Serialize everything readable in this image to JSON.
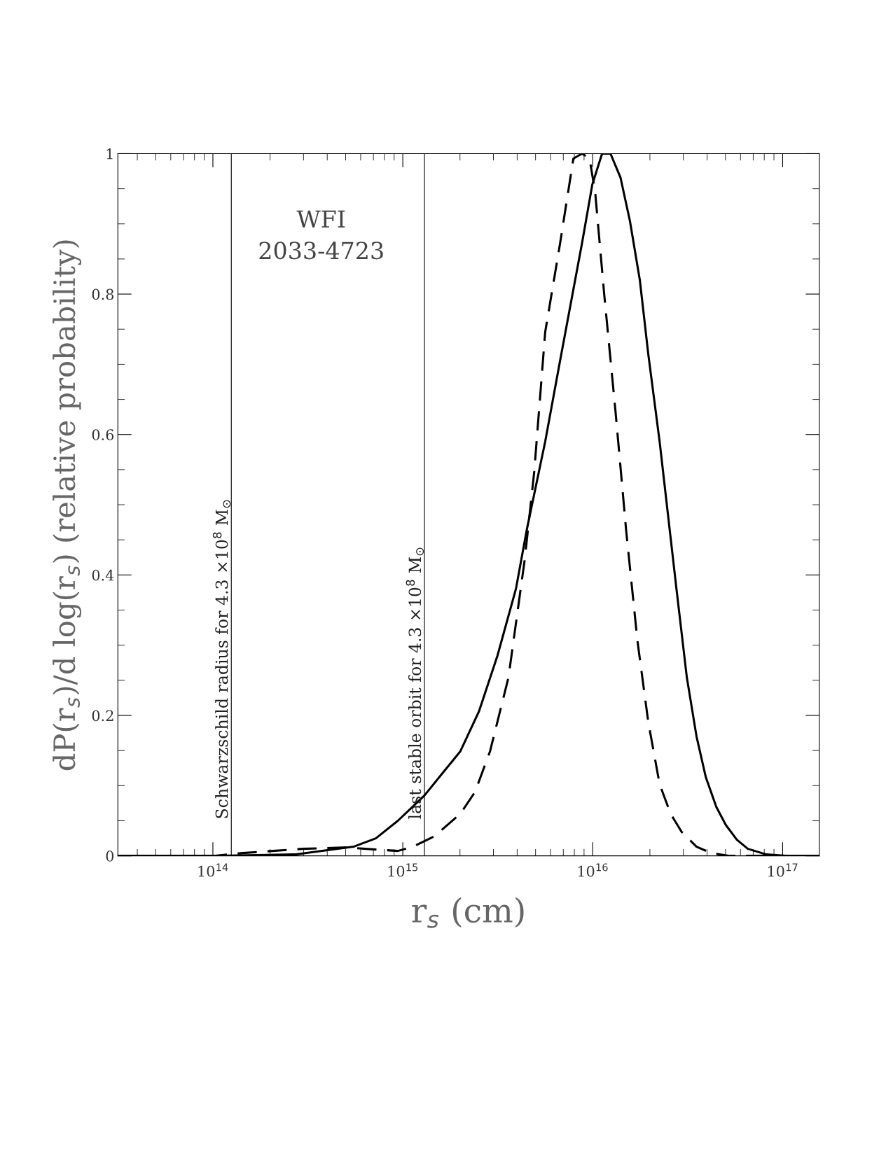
{
  "chart_data": {
    "type": "line",
    "xlabel": "r$_{s}$ (cm)",
    "ylabel": "dP(r$_{s}$)/d log(r$_{s}$) (relative probability)",
    "annotations": [
      "WFI\n2033-4723"
    ],
    "log": "x",
    "xlim": [
      31600000000000.0,
      1.56e+17
    ],
    "xticks": [
      {
        "value": 100000000000000.0,
        "label": "10$^{14}$"
      },
      {
        "value": 1000000000000000.0,
        "label": "10$^{15}$"
      },
      {
        "value": 1e+16,
        "label": "10$^{16}$"
      },
      {
        "value": 1e+17,
        "label": "10$^{17}$"
      }
    ],
    "ylim": [
      0,
      1
    ],
    "yticks": [
      0,
      0.2,
      0.4,
      0.6,
      0.8,
      1
    ],
    "grid": false,
    "legend": false,
    "series": [
      {
        "color": "#000000",
        "line_style": "solid",
        "x": [
          31600000000000.0,
          110000000000000.0,
          270000000000000.0,
          551000000000000.0,
          721000000000000.0,
          942000000000000.0,
          1300000000000000.0,
          1610000000000000.0,
          2010000000000000.0,
          2520000000000000.0,
          3150000000000000.0,
          3940000000000000.0,
          4500000000000000.0,
          5620000000000000.0,
          6730000000000000.0,
          8790000000000000.0,
          9950000000000000.0,
          1.12e+16,
          1.24e+16,
          1.4e+16,
          1.57e+16,
          1.77e+16,
          1.96e+16,
          2.25e+16,
          2.76e+16,
          3.13e+16,
          3.52e+16,
          3.94e+16,
          4.47e+16,
          5.02e+16,
          5.74e+16,
          6.56e+16,
          8.2e+16,
          1.07e+17,
          1.56e+17
        ],
        "values": [
          0,
          0,
          0.002,
          0.013,
          0.025,
          0.05,
          0.086,
          0.117,
          0.149,
          0.206,
          0.285,
          0.38,
          0.465,
          0.59,
          0.705,
          0.873,
          0.956,
          1.0,
          1.0,
          0.966,
          0.904,
          0.82,
          0.715,
          0.59,
          0.38,
          0.254,
          0.17,
          0.112,
          0.07,
          0.044,
          0.023,
          0.01,
          0.002,
          0,
          0
        ]
      },
      {
        "color": "#000000",
        "line_style": "dashed",
        "x": [
          31600000000000.0,
          101000000000000.0,
          144000000000000.0,
          295000000000000.0,
          504000000000000.0,
          721000000000000.0,
          942000000000000.0,
          1130000000000000.0,
          1470000000000000.0,
          2010000000000000.0,
          2400000000000000.0,
          2880000000000000.0,
          3600000000000000.0,
          4380000000000000.0,
          4920000000000000.0,
          5620000000000000.0,
          6730000000000000.0,
          7910000000000000.0,
          8790000000000000.0,
          9620000000000000.0,
          1.03e+16,
          1.15e+16,
          1.32e+16,
          1.5e+16,
          1.72e+16,
          1.96e+16,
          2.25e+16,
          2.57e+16,
          2.94e+16,
          3.52e+16,
          4.2e+16,
          5.25e+16,
          1.56e+17
        ],
        "values": [
          0,
          0,
          0.004,
          0.01,
          0.012,
          0.009,
          0.007,
          0.013,
          0.028,
          0.06,
          0.091,
          0.149,
          0.254,
          0.421,
          0.547,
          0.746,
          0.872,
          0.993,
          1.0,
          0.993,
          0.945,
          0.799,
          0.631,
          0.463,
          0.306,
          0.191,
          0.102,
          0.06,
          0.034,
          0.013,
          0.004,
          0,
          0
        ]
      }
    ],
    "ref_lines": [
      {
        "axis": "x",
        "value": 125000000000000.0,
        "label": "Schwarzschild radius for 4.3 ×10$^{8}$ M$_{⊙}$",
        "color": "#000000"
      },
      {
        "axis": "x",
        "value": 1300000000000000.0,
        "label": "last stable orbit for 4.3 ×10$^{8}$ M$_{⊙}$",
        "color": "#000000"
      }
    ]
  }
}
